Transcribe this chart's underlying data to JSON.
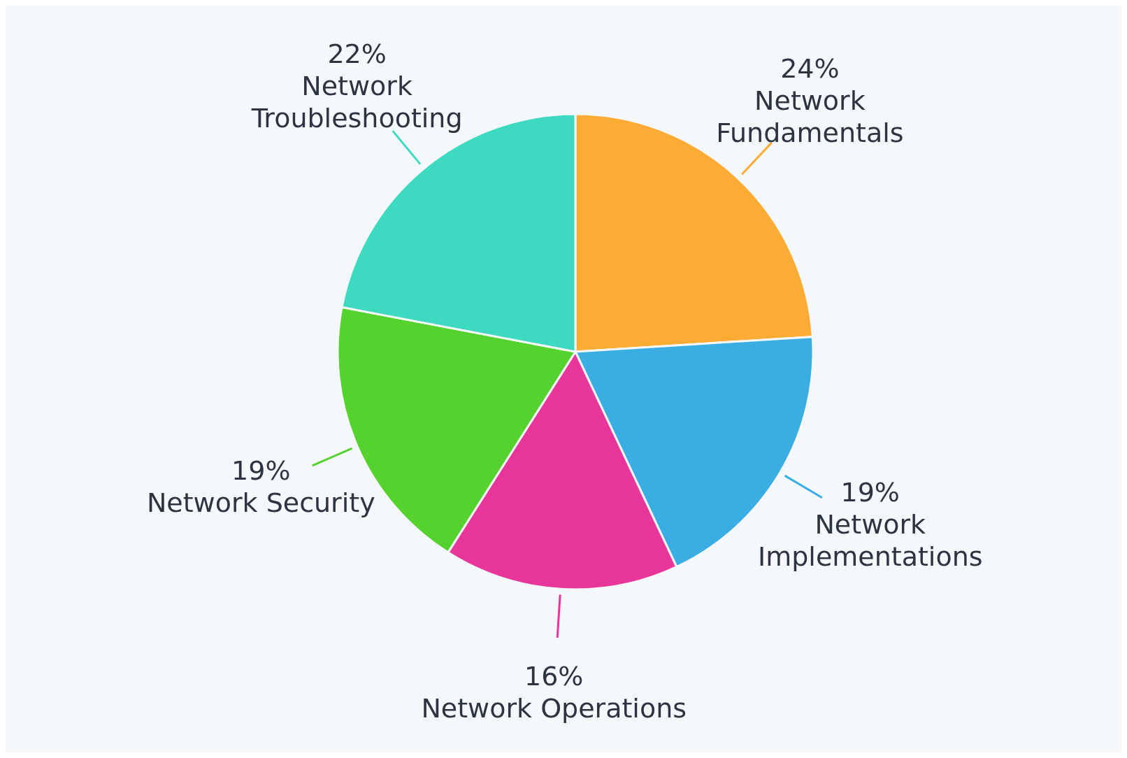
{
  "chart_data": {
    "type": "pie",
    "categories": [
      "Network Fundamentals",
      "Network Implementations",
      "Network Operations",
      "Network Security",
      "Network Troubleshooting"
    ],
    "values": [
      24,
      19,
      16,
      19,
      22
    ],
    "value_labels": [
      "24%",
      "19%",
      "16%",
      "19%",
      "22%"
    ],
    "colors": [
      "#fcab35",
      "#3aaee3",
      "#e8359a",
      "#55d22e",
      "#3dd9c1"
    ]
  }
}
